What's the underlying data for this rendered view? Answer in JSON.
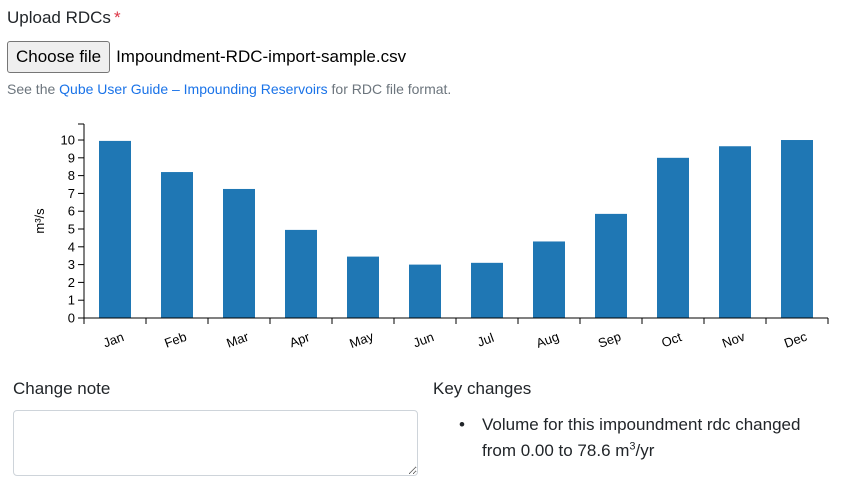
{
  "upload": {
    "label": "Upload RDCs",
    "required_marker": "*",
    "choose_button": "Choose file",
    "file_name": "Impoundment-RDC-import-sample.csv"
  },
  "help": {
    "prefix": "See the ",
    "link_text": "Qube User Guide – Impounding Reservoirs",
    "suffix": " for RDC file format."
  },
  "chart_data": {
    "type": "bar",
    "categories": [
      "Jan",
      "Feb",
      "Mar",
      "Apr",
      "May",
      "Jun",
      "Jul",
      "Aug",
      "Sep",
      "Oct",
      "Nov",
      "Dec"
    ],
    "values": [
      9.95,
      8.2,
      7.25,
      4.95,
      3.45,
      3.0,
      3.1,
      4.3,
      5.85,
      9.0,
      9.65,
      10.0
    ],
    "ylabel": "m³/s",
    "ylim": [
      0,
      10.9
    ],
    "yticks": [
      0,
      1,
      2,
      3,
      4,
      5,
      6,
      7,
      8,
      9,
      10
    ],
    "bar_color": "#1f77b4",
    "grid": false
  },
  "change_note": {
    "label": "Change note",
    "value": ""
  },
  "key_changes": {
    "label": "Key changes",
    "bullet": "•",
    "items": [
      {
        "text_line1": "Volume for this impoundment rdc changed",
        "text_line2": "from 0.00 to 78.6 m",
        "superscript": "3",
        "unit_suffix": "/yr"
      }
    ]
  }
}
